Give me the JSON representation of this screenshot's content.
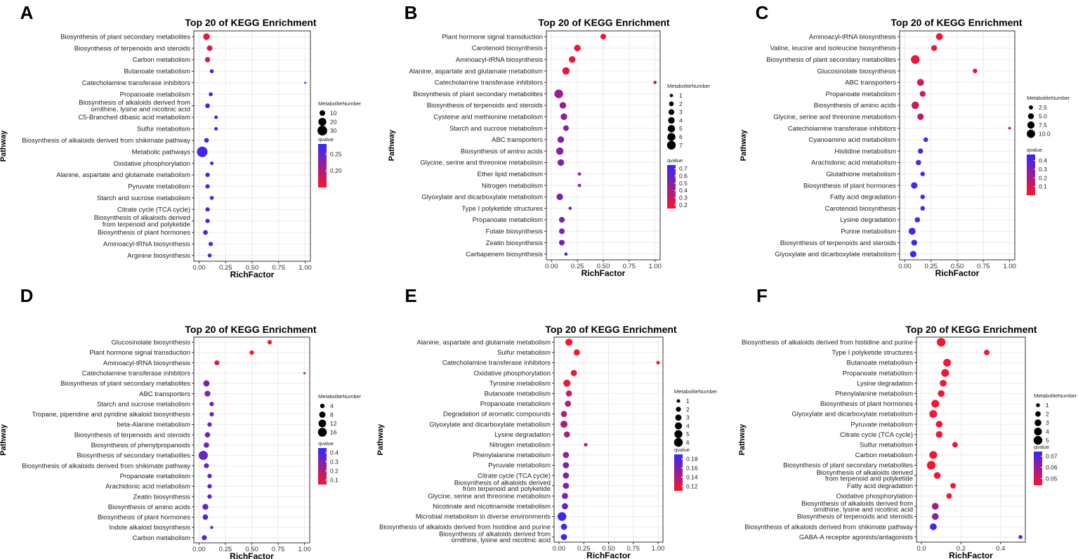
{
  "chart_data": [
    {
      "panel": "A",
      "type": "scatter",
      "title": "Top 20 of KEGG Enrichment",
      "xlabel": "RichFactor",
      "ylabel": "Pathway",
      "xlim": [
        0,
        1
      ],
      "xticks": [
        "0.00",
        "0.25",
        "0.50",
        "0.75",
        "1.00"
      ],
      "categories": [
        "Biosynthesis of plant secondary metabolites",
        "Biosynthesis of terpenoids and steroids",
        "Carbon metabolism",
        "Butanoate metabolism",
        "Catecholamine transferase inhibitors",
        "Propanoate metabolism",
        "Biosynthesis of alkaloids derived from|ornithine, lysine and nicotinic acid",
        "C5-Branched dibasic acid metabolism",
        "Sulfur metabolism",
        "Biosynthesis of alkaloids derived from shikimate pathway",
        "Metabolic pathways",
        "Oxidative phosphorylation",
        "Alanine, aspartate and glutamate metabolism",
        "Pyruvate metabolism",
        "Starch and sucrose metabolism",
        "Citrate cycle (TCA cycle)",
        "Biosynthesis of alkaloids derived|from terpenoid and polyketide",
        "Biosynthesis of plant hormones",
        "Aminoacyl-tRNA biosynthesis",
        "Arginine biosynthesis"
      ],
      "x": [
        0.07,
        0.1,
        0.08,
        0.12,
        1.0,
        0.11,
        0.08,
        0.16,
        0.16,
        0.07,
        0.03,
        0.12,
        0.08,
        0.08,
        0.12,
        0.08,
        0.08,
        0.06,
        0.11,
        0.1
      ],
      "size": [
        14,
        10,
        9,
        5,
        1,
        5,
        7,
        4,
        4,
        7,
        35,
        4,
        6,
        6,
        5,
        6,
        6,
        7,
        6,
        5
      ],
      "qvalue": [
        0.16,
        0.17,
        0.18,
        0.27,
        0.27,
        0.27,
        0.27,
        0.27,
        0.27,
        0.27,
        0.27,
        0.27,
        0.27,
        0.27,
        0.27,
        0.27,
        0.27,
        0.27,
        0.27,
        0.27
      ],
      "size_legend": {
        "title": "MetaboliteNumber",
        "labels": [
          "10",
          "20",
          "30"
        ],
        "values": [
          10,
          20,
          30
        ],
        "max": 35
      },
      "color_legend": {
        "title": "qvalue",
        "labels": [
          "0.25",
          "0.20"
        ],
        "values": [
          0.25,
          0.2
        ],
        "range": [
          0.15,
          0.28
        ]
      }
    },
    {
      "panel": "B",
      "type": "scatter",
      "title": "Top 20 of KEGG Enrichment",
      "xlabel": "RichFactor",
      "ylabel": "Pathway",
      "xlim": [
        0,
        1
      ],
      "xticks": [
        "0.00",
        "0.25",
        "0.50",
        "0.75",
        "1.00"
      ],
      "categories": [
        "Plant hormone signal transduction",
        "Carotenoid biosynthesis",
        "Aminoacyl-tRNA biosynthesis",
        "Alanine, aspartate and glutamate metabolism",
        "Catecholamine transferase inhibitors",
        "Biosynthesis of plant secondary metabolites",
        "Biosynthesis of terpenoids and steroids",
        "Cysteine and methionine metabolism",
        "Starch and sucrose metabolism",
        "ABC transporters",
        "Biosynthesis of amino acids",
        "Glycine, serine and threonine metabolism",
        "Ether lipid metabolism",
        "Nitrogen metabolism",
        "Glyoxylate and dicarboxylate metabolism",
        "Type I polyketide structures",
        "Propanoate metabolism",
        "Folate biosynthesis",
        "Zeatin biosynthesis",
        "Carbapenem biosynthesis"
      ],
      "x": [
        0.5,
        0.25,
        0.2,
        0.14,
        1.0,
        0.07,
        0.11,
        0.12,
        0.14,
        0.09,
        0.08,
        0.09,
        0.27,
        0.27,
        0.08,
        0.18,
        0.1,
        0.1,
        0.1,
        0.14
      ],
      "size": [
        3,
        4,
        4,
        5,
        1,
        7,
        4,
        4,
        3,
        4,
        5,
        4,
        1,
        1,
        4,
        1,
        3,
        3,
        3,
        1
      ],
      "qvalue": [
        0.16,
        0.18,
        0.2,
        0.22,
        0.4,
        0.42,
        0.45,
        0.45,
        0.48,
        0.5,
        0.5,
        0.5,
        0.5,
        0.52,
        0.52,
        0.52,
        0.55,
        0.55,
        0.55,
        0.75
      ],
      "size_legend": {
        "title": "MetaboliteNumber",
        "labels": [
          "1",
          "2",
          "3",
          "4",
          "5",
          "6",
          "7"
        ],
        "values": [
          1,
          2,
          3,
          4,
          5,
          6,
          7
        ],
        "max": 7
      },
      "color_legend": {
        "title": "qvalue",
        "labels": [
          "0.7",
          "0.6",
          "0.5",
          "0.4",
          "0.3",
          "0.2"
        ],
        "values": [
          0.7,
          0.6,
          0.5,
          0.4,
          0.3,
          0.2
        ],
        "range": [
          0.15,
          0.75
        ]
      }
    },
    {
      "panel": "C",
      "type": "scatter",
      "title": "Top 20 of KEGG Enrichment",
      "xlabel": "RichFactor",
      "ylabel": "Pathway",
      "xlim": [
        0,
        1
      ],
      "xticks": [
        "0.00",
        "0.25",
        "0.50",
        "0.75",
        "1.00"
      ],
      "categories": [
        "Aminoacyl-tRNA biosynthesis",
        "Valine, leucine and isoleucine biosynthesis",
        "Biosynthesis of plant secondary metabolites",
        "Glucosinolate biosynthesis",
        "ABC transporters",
        "Propanoate metabolism",
        "Biosynthesis of amino acids",
        "Glycine, serine and threonine metabolism",
        "Catecholamine transferase inhibitors",
        "Cyanoamino acid metabolism",
        "Histidine metabolism",
        "Arachidonic acid metabolism",
        "Glutathione metabolism",
        "Biosynthesis of plant hormones",
        "Fatty acid degradation",
        "Carotenoid biosynthesis",
        "Lysine degradation",
        "Purine metabolism",
        "Biosynthesis of terpenoids and steroids",
        "Glyoxylate and dicarboxylate metabolism"
      ],
      "x": [
        0.33,
        0.28,
        0.1,
        0.67,
        0.15,
        0.17,
        0.1,
        0.15,
        1.0,
        0.2,
        0.15,
        0.13,
        0.17,
        0.09,
        0.17,
        0.17,
        0.12,
        0.07,
        0.09,
        0.08
      ],
      "size": [
        7,
        5,
        11,
        3,
        7,
        5,
        8,
        6,
        1,
        3,
        4,
        4,
        3,
        6,
        3,
        3,
        4,
        7,
        5,
        6
      ],
      "qvalue": [
        0.02,
        0.03,
        0.04,
        0.05,
        0.08,
        0.1,
        0.12,
        0.15,
        0.2,
        0.4,
        0.4,
        0.4,
        0.4,
        0.42,
        0.42,
        0.42,
        0.42,
        0.45,
        0.45,
        0.45
      ],
      "size_legend": {
        "title": "MetaboliteNumber",
        "labels": [
          "2.5",
          "5.0",
          "7.5",
          "10.0"
        ],
        "values": [
          2.5,
          5.0,
          7.5,
          10.0
        ],
        "max": 11
      },
      "color_legend": {
        "title": "qvalue",
        "labels": [
          "0.4",
          "0.3",
          "0.2",
          "0.1"
        ],
        "values": [
          0.4,
          0.3,
          0.2,
          0.1
        ],
        "range": [
          0.0,
          0.47
        ]
      }
    },
    {
      "panel": "D",
      "type": "scatter",
      "title": "Top 20 of KEGG Enrichment",
      "xlabel": "RichFactor",
      "ylabel": "Pathway",
      "xlim": [
        0,
        1
      ],
      "xticks": [
        "0.00",
        "0.25",
        "0.50",
        "0.75",
        "1.00"
      ],
      "categories": [
        "Glucosinolate biosynthesis",
        "Plant hormone signal transduction",
        "Aminoacyl-tRNA biosynthesis",
        "Catecholamine transferase inhibitors",
        "Biosynthesis of plant secondary metabolites",
        "ABC transporters",
        "Starch and sucrose metabolism",
        "Tropane, piperidine and pyridine alkaloid biosynthesis",
        "beta-Alanine metabolism",
        "Biosynthesis of terpenoids and steroids",
        "Biosynthesis of phenylpropanoids",
        "Biosynthesis of secondary metabolites",
        "Biosynthesis of alkaloids derived from shikimate pathway",
        "Propanoate metabolism",
        "Arachidonic acid metabolism",
        "Zeatin biosynthesis",
        "Biosynthesis of amino acids",
        "Biosynthesis of plant hormones",
        "Indole alkaloid biosynthesis",
        "Carbon metabolism"
      ],
      "x": [
        0.67,
        0.5,
        0.17,
        1.0,
        0.07,
        0.08,
        0.12,
        0.12,
        0.1,
        0.08,
        0.07,
        0.04,
        0.07,
        0.1,
        0.1,
        0.1,
        0.06,
        0.06,
        0.12,
        0.05
      ],
      "size": [
        4,
        4,
        5,
        1,
        8,
        7,
        4,
        4,
        4,
        6,
        6,
        17,
        5,
        4,
        4,
        4,
        7,
        6,
        2,
        5
      ],
      "qvalue": [
        0.06,
        0.06,
        0.1,
        0.25,
        0.3,
        0.3,
        0.32,
        0.32,
        0.34,
        0.34,
        0.34,
        0.35,
        0.36,
        0.36,
        0.36,
        0.36,
        0.36,
        0.38,
        0.42,
        0.42
      ],
      "size_legend": {
        "title": "MetaboliteNumber",
        "labels": [
          "4",
          "8",
          "12",
          "16"
        ],
        "values": [
          4,
          8,
          12,
          16
        ],
        "max": 17
      },
      "color_legend": {
        "title": "qvalue",
        "labels": [
          "0.4",
          "0.3",
          "0.2",
          "0.1"
        ],
        "values": [
          0.4,
          0.3,
          0.2,
          0.1
        ],
        "range": [
          0.05,
          0.45
        ]
      }
    },
    {
      "panel": "E",
      "type": "scatter",
      "title": "Top 20 of KEGG Enrichment",
      "xlabel": "RichFactor",
      "ylabel": "Pathway",
      "xlim": [
        0,
        1
      ],
      "xticks": [
        "0.00",
        "0.25",
        "0.50",
        "0.75",
        "1.00"
      ],
      "categories": [
        "Alanine, aspartate and glutamate metabolism",
        "Sulfur metabolism",
        "Catecholamine transferase inhibitors",
        "Oxidative phosphorylation",
        "Tyrosine metabolism",
        "Butanoate metabolism",
        "Propanoate metabolism",
        "Degradation of aromatic compounds",
        "Glyoxylate and dicarboxylate metabolism",
        "Lysine degradation",
        "Nitrogen metabolism",
        "Phenylalanine metabolism",
        "Pyruvate metabolism",
        "Citrate cycle (TCA cycle)",
        "Biosynthesis of alkaloids derived|from terpenoid and polyketide",
        "Glycine, serine and threonine metabolism",
        "Nicotinate and nicotinamide metabolism",
        "Microbial metabolism in diverse environments",
        "Biosynthesis of alkaloids derived from histidine and purine",
        "Biosynthesis of alkaloids derived from|ornithine, lysine and nicotinic acid"
      ],
      "x": [
        0.1,
        0.18,
        1.0,
        0.15,
        0.08,
        0.1,
        0.09,
        0.05,
        0.05,
        0.08,
        0.27,
        0.07,
        0.07,
        0.07,
        0.07,
        0.06,
        0.06,
        0.03,
        0.05,
        0.05
      ],
      "size": [
        4,
        3,
        1,
        3,
        4,
        3,
        3,
        3,
        4,
        3,
        1,
        3,
        3,
        3,
        3,
        3,
        3,
        6,
        3,
        3
      ],
      "qvalue": [
        0.11,
        0.11,
        0.11,
        0.115,
        0.115,
        0.13,
        0.14,
        0.14,
        0.14,
        0.14,
        0.14,
        0.15,
        0.16,
        0.16,
        0.16,
        0.16,
        0.17,
        0.185,
        0.185,
        0.185
      ],
      "size_legend": {
        "title": "MetaboliteNumber",
        "labels": [
          "1",
          "2",
          "3",
          "4",
          "5",
          "6"
        ],
        "values": [
          1,
          2,
          3,
          4,
          5,
          6
        ],
        "max": 6
      },
      "color_legend": {
        "title": "qvalue",
        "labels": [
          "0.18",
          "0.16",
          "0.14",
          "0.12"
        ],
        "values": [
          0.18,
          0.16,
          0.14,
          0.12
        ],
        "range": [
          0.11,
          0.19
        ]
      }
    },
    {
      "panel": "F",
      "type": "scatter",
      "title": "Top 20 of KEGG Enrichment",
      "xlabel": "RichFactor",
      "ylabel": "Pathway",
      "xlim": [
        0,
        0.5
      ],
      "xticks": [
        "0.0",
        "0.2",
        "0.4"
      ],
      "categories": [
        "Biosynthesis of alkaloids derived from histidine and purine",
        "Type I polyketide structures",
        "Butanoate metabolism",
        "Propanoate metabolism",
        "Lysine degradation",
        "Phenylalanine metabolism",
        "Biosynthesis of plant hormones",
        "Glyoxylate and dicarboxylate metabolism",
        "Pyruvate metabolism",
        "Citrate cycle (TCA cycle)",
        "Sulfur metabolism",
        "Carbon metabolism",
        "Biosynthesis of plant secondary metabolites",
        "Biosynthesis of alkaloids derived|from terpenoid and polyketide",
        "Fatty acid degradation",
        "Oxidative phosphorylation",
        "Biosynthesis of alkaloids derived from|ornithine, lysine and nicotinic acid",
        "Biosynthesis of terpenoids and steroids",
        "Biosynthesis of alkaloids derived from shikimate pathway",
        "GABA-A receptor agonists/antagonists"
      ],
      "x": [
        0.1,
        0.33,
        0.13,
        0.12,
        0.11,
        0.1,
        0.07,
        0.06,
        0.09,
        0.09,
        0.17,
        0.06,
        0.05,
        0.08,
        0.16,
        0.14,
        0.07,
        0.07,
        0.06,
        0.5
      ],
      "size": [
        5,
        2,
        4,
        4,
        3,
        3,
        4,
        4,
        3,
        3,
        2,
        4,
        5,
        3,
        2,
        2,
        3,
        3,
        3,
        1
      ],
      "qvalue": [
        0.045,
        0.045,
        0.045,
        0.045,
        0.045,
        0.045,
        0.045,
        0.045,
        0.045,
        0.045,
        0.045,
        0.045,
        0.045,
        0.045,
        0.045,
        0.045,
        0.058,
        0.06,
        0.072,
        0.072
      ],
      "size_legend": {
        "title": "MetaboliteNumber",
        "labels": [
          "1",
          "2",
          "3",
          "4",
          "5"
        ],
        "values": [
          1,
          2,
          3,
          4,
          5
        ],
        "max": 5
      },
      "color_legend": {
        "title": "qvalue",
        "labels": [
          "0.07",
          "0.06",
          "0.05"
        ],
        "values": [
          0.07,
          0.06,
          0.05
        ],
        "range": [
          0.044,
          0.074
        ]
      }
    }
  ]
}
